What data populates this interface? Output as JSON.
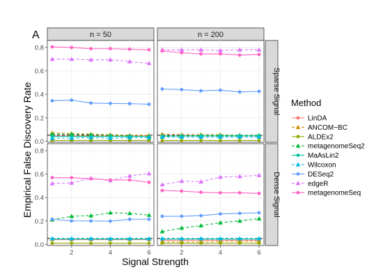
{
  "panel_tag": "A",
  "ylabel": "Empirical False Discovery Rate",
  "xlabel": "Signal Strength",
  "col_strips": [
    "n = 50",
    "n = 200"
  ],
  "row_strips": [
    "Sparse Signal",
    "Dense Signal"
  ],
  "legend": {
    "title": "Method",
    "items": [
      {
        "label": "LinDA",
        "color": "#f8766d",
        "shape": "circle",
        "dash": "solid"
      },
      {
        "label": "ANCOM−BC",
        "color": "#d39200",
        "shape": "triangle",
        "dash": "dashed"
      },
      {
        "label": "ALDEx2",
        "color": "#93aa00",
        "shape": "circle",
        "dash": "solid"
      },
      {
        "label": "metagenomeSeq2",
        "color": "#00ba38",
        "shape": "triangle",
        "dash": "dashed"
      },
      {
        "label": "MaAsLin2",
        "color": "#00c19f",
        "shape": "circle",
        "dash": "solid"
      },
      {
        "label": "Wilcoxon",
        "color": "#00b9e3",
        "shape": "triangle",
        "dash": "dashed"
      },
      {
        "label": "DESeq2",
        "color": "#619cff",
        "shape": "circle",
        "dash": "solid"
      },
      {
        "label": "edgeR",
        "color": "#db72fb",
        "shape": "triangle",
        "dash": "dashed"
      },
      {
        "label": "metagenomeSeq",
        "color": "#ff61c3",
        "shape": "circle",
        "dash": "solid"
      }
    ]
  },
  "chart_data": {
    "type": "line",
    "x": [
      1,
      2,
      3,
      4,
      5,
      6
    ],
    "xticks": [
      2,
      4,
      6
    ],
    "yticks": [
      0.0,
      0.2,
      0.4,
      0.6,
      0.8
    ],
    "xlim": [
      0.75,
      6.25
    ],
    "ylim": [
      -0.01,
      0.86
    ],
    "reference_line": 0.05,
    "panels": [
      {
        "row": "Sparse Signal",
        "col": "n = 50",
        "series": [
          {
            "name": "LinDA",
            "values": [
              0.045,
              0.045,
              0.045,
              0.045,
              0.045,
              0.045
            ]
          },
          {
            "name": "ANCOM−BC",
            "values": [
              0.07,
              0.065,
              0.06,
              0.055,
              0.05,
              0.05
            ]
          },
          {
            "name": "ALDEx2",
            "values": [
              0.005,
              0.005,
              0.005,
              0.005,
              0.005,
              0.005
            ]
          },
          {
            "name": "metagenomeSeq2",
            "values": [
              0.06,
              0.06,
              0.055,
              0.05,
              0.045,
              0.04
            ]
          },
          {
            "name": "MaAsLin2",
            "values": [
              0.04,
              0.04,
              0.04,
              0.04,
              0.04,
              0.04
            ]
          },
          {
            "name": "Wilcoxon",
            "values": [
              0.025,
              0.025,
              0.03,
              0.025,
              0.03,
              0.03
            ]
          },
          {
            "name": "DESeq2",
            "values": [
              0.345,
              0.35,
              0.325,
              0.322,
              0.32,
              0.315
            ]
          },
          {
            "name": "edgeR",
            "values": [
              0.7,
              0.7,
              0.695,
              0.695,
              0.68,
              0.665
            ]
          },
          {
            "name": "metagenomeSeq",
            "values": [
              0.805,
              0.8,
              0.79,
              0.79,
              0.785,
              0.78
            ]
          }
        ]
      },
      {
        "row": "Sparse Signal",
        "col": "n = 200",
        "series": [
          {
            "name": "LinDA",
            "values": [
              0.045,
              0.045,
              0.045,
              0.045,
              0.045,
              0.045
            ]
          },
          {
            "name": "ANCOM−BC",
            "values": [
              0.06,
              0.055,
              0.055,
              0.055,
              0.05,
              0.05
            ]
          },
          {
            "name": "ALDEx2",
            "values": [
              0.005,
              0.005,
              0.005,
              0.005,
              0.005,
              0.005
            ]
          },
          {
            "name": "metagenomeSeq2",
            "values": [
              0.04,
              0.045,
              0.05,
              0.05,
              0.05,
              0.05
            ]
          },
          {
            "name": "MaAsLin2",
            "values": [
              0.045,
              0.045,
              0.045,
              0.045,
              0.045,
              0.045
            ]
          },
          {
            "name": "Wilcoxon",
            "values": [
              0.035,
              0.035,
              0.035,
              0.035,
              0.035,
              0.035
            ]
          },
          {
            "name": "DESeq2",
            "values": [
              0.445,
              0.44,
              0.43,
              0.435,
              0.42,
              0.425
            ]
          },
          {
            "name": "edgeR",
            "values": [
              0.78,
              0.78,
              0.78,
              0.775,
              0.78,
              0.78
            ]
          },
          {
            "name": "metagenomeSeq",
            "values": [
              0.77,
              0.755,
              0.745,
              0.745,
              0.735,
              0.74
            ]
          }
        ]
      },
      {
        "row": "Dense Signal",
        "col": "n = 50",
        "series": [
          {
            "name": "LinDA",
            "values": [
              0.04,
              0.04,
              0.04,
              0.04,
              0.04,
              0.04
            ]
          },
          {
            "name": "ANCOM−BC",
            "values": [
              0.045,
              0.045,
              0.045,
              0.045,
              0.045,
              0.045
            ]
          },
          {
            "name": "ALDEx2",
            "values": [
              0.01,
              0.01,
              0.01,
              0.01,
              0.01,
              0.01
            ]
          },
          {
            "name": "metagenomeSeq2",
            "values": [
              0.21,
              0.24,
              0.245,
              0.27,
              0.265,
              0.25
            ]
          },
          {
            "name": "MaAsLin2",
            "values": [
              0.045,
              0.045,
              0.045,
              0.045,
              0.045,
              0.045
            ]
          },
          {
            "name": "Wilcoxon",
            "values": [
              0.05,
              0.05,
              0.05,
              0.05,
              0.05,
              0.05
            ]
          },
          {
            "name": "DESeq2",
            "values": [
              0.215,
              0.2,
              0.2,
              0.198,
              0.215,
              0.215
            ]
          },
          {
            "name": "edgeR",
            "values": [
              0.52,
              0.525,
              0.565,
              0.545,
              0.585,
              0.605
            ]
          },
          {
            "name": "metagenomeSeq",
            "values": [
              0.57,
              0.57,
              0.56,
              0.55,
              0.55,
              0.53
            ]
          }
        ]
      },
      {
        "row": "Dense Signal",
        "col": "n = 200",
        "series": [
          {
            "name": "LinDA",
            "values": [
              0.035,
              0.035,
              0.035,
              0.035,
              0.035,
              0.035
            ]
          },
          {
            "name": "ANCOM−BC",
            "values": [
              0.02,
              0.02,
              0.02,
              0.025,
              0.025,
              0.025
            ]
          },
          {
            "name": "ALDEx2",
            "values": [
              0.01,
              0.01,
              0.01,
              0.01,
              0.01,
              0.01
            ]
          },
          {
            "name": "metagenomeSeq2",
            "values": [
              0.11,
              0.14,
              0.16,
              0.185,
              0.2,
              0.22
            ]
          },
          {
            "name": "MaAsLin2",
            "values": [
              0.045,
              0.045,
              0.045,
              0.045,
              0.045,
              0.045
            ]
          },
          {
            "name": "Wilcoxon",
            "values": [
              0.05,
              0.05,
              0.05,
              0.05,
              0.05,
              0.05
            ]
          },
          {
            "name": "DESeq2",
            "values": [
              0.24,
              0.24,
              0.245,
              0.26,
              0.265,
              0.27
            ]
          },
          {
            "name": "edgeR",
            "values": [
              0.51,
              0.54,
              0.535,
              0.575,
              0.58,
              0.59
            ]
          },
          {
            "name": "metagenomeSeq",
            "values": [
              0.46,
              0.455,
              0.445,
              0.44,
              0.44,
              0.435
            ]
          }
        ]
      }
    ]
  }
}
